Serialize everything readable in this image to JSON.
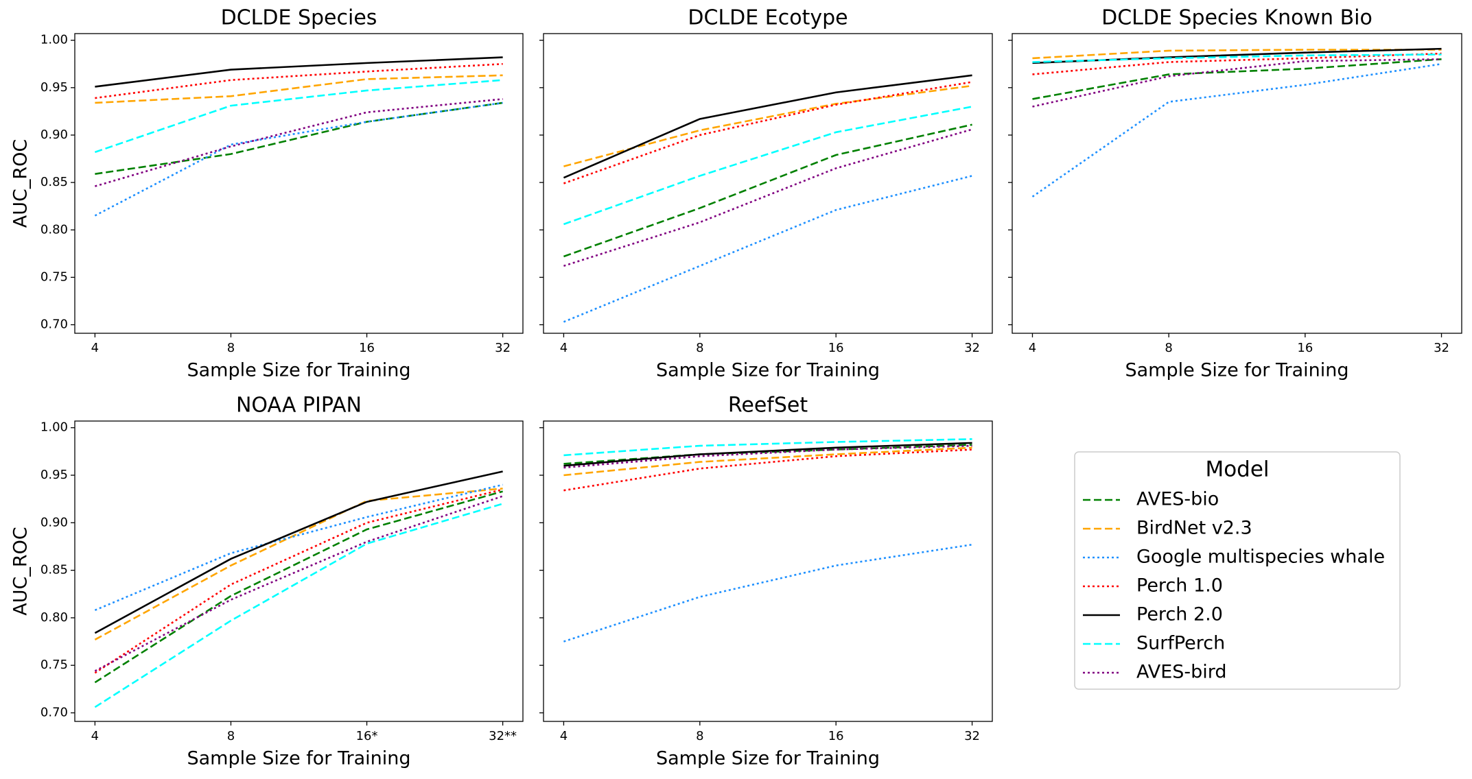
{
  "legend": {
    "title": "Model"
  },
  "chart_data": [
    {
      "type": "line",
      "title": "DCLDE Species",
      "xlabel": "Sample Size for Training",
      "ylabel": "AUC_ROC",
      "categories": [
        "4",
        "8",
        "16",
        "32"
      ],
      "ylim": [
        0.691,
        1.007
      ],
      "yticks": [
        {
          "value": 0.7,
          "label": "0.70"
        },
        {
          "value": 0.75,
          "label": "0.75"
        },
        {
          "value": 0.8,
          "label": "0.80"
        },
        {
          "value": 0.85,
          "label": "0.85"
        },
        {
          "value": 0.9,
          "label": "0.90"
        },
        {
          "value": 0.95,
          "label": "0.95"
        },
        {
          "value": 1.0,
          "label": "1.00"
        }
      ],
      "series": [
        {
          "name": "AVES-bio",
          "color": "#008000",
          "linestyle": "dashed",
          "values": [
            0.859,
            0.88,
            0.914,
            0.934
          ]
        },
        {
          "name": "BirdNet v2.3",
          "color": "#ffa500",
          "linestyle": "dashed",
          "values": [
            0.934,
            0.941,
            0.959,
            0.963
          ]
        },
        {
          "name": "Google multispecies whale",
          "color": "#1e90ff",
          "linestyle": "dotted",
          "values": [
            0.815,
            0.89,
            0.914,
            0.934
          ]
        },
        {
          "name": "Perch 1.0",
          "color": "#ff0000",
          "linestyle": "dotted",
          "values": [
            0.939,
            0.958,
            0.967,
            0.975
          ]
        },
        {
          "name": "Perch 2.0",
          "color": "#000000",
          "linestyle": "solid",
          "values": [
            0.951,
            0.969,
            0.976,
            0.982
          ]
        },
        {
          "name": "SurfPerch",
          "color": "#00ffff",
          "linestyle": "dashed",
          "values": [
            0.882,
            0.931,
            0.947,
            0.958
          ]
        },
        {
          "name": "AVES-bird",
          "color": "#800080",
          "linestyle": "dotted",
          "values": [
            0.846,
            0.888,
            0.924,
            0.938
          ]
        }
      ]
    },
    {
      "type": "line",
      "title": "DCLDE Ecotype",
      "xlabel": "Sample Size for Training",
      "categories": [
        "4",
        "8",
        "16",
        "32"
      ],
      "ylim": [
        0.691,
        1.007
      ],
      "yticklabels": false,
      "yticks": [
        0.7,
        0.75,
        0.8,
        0.85,
        0.9,
        0.95,
        1
      ],
      "series": [
        {
          "name": "AVES-bio",
          "color": "#008000",
          "linestyle": "dashed",
          "values": [
            0.772,
            0.823,
            0.879,
            0.911
          ]
        },
        {
          "name": "BirdNet v2.3",
          "color": "#ffa500",
          "linestyle": "dashed",
          "values": [
            0.867,
            0.905,
            0.933,
            0.952
          ]
        },
        {
          "name": "Google multispecies whale",
          "color": "#1e90ff",
          "linestyle": "dotted",
          "values": [
            0.703,
            0.762,
            0.821,
            0.857
          ]
        },
        {
          "name": "Perch 1.0",
          "color": "#ff0000",
          "linestyle": "dotted",
          "values": [
            0.849,
            0.9,
            0.932,
            0.956
          ]
        },
        {
          "name": "Perch 2.0",
          "color": "#000000",
          "linestyle": "solid",
          "values": [
            0.855,
            0.917,
            0.945,
            0.963
          ]
        },
        {
          "name": "SurfPerch",
          "color": "#00ffff",
          "linestyle": "dashed",
          "values": [
            0.806,
            0.857,
            0.903,
            0.93
          ]
        },
        {
          "name": "AVES-bird",
          "color": "#800080",
          "linestyle": "dotted",
          "values": [
            0.762,
            0.808,
            0.865,
            0.906
          ]
        }
      ]
    },
    {
      "type": "line",
      "title": "DCLDE Species Known Bio",
      "xlabel": "Sample Size for Training",
      "categories": [
        "4",
        "8",
        "16",
        "32"
      ],
      "ylim": [
        0.691,
        1.007
      ],
      "yticklabels": false,
      "yticks": [
        0.7,
        0.75,
        0.8,
        0.85,
        0.9,
        0.95,
        1
      ],
      "series": [
        {
          "name": "AVES-bio",
          "color": "#008000",
          "linestyle": "dashed",
          "values": [
            0.938,
            0.964,
            0.97,
            0.98
          ]
        },
        {
          "name": "BirdNet v2.3",
          "color": "#ffa500",
          "linestyle": "dashed",
          "values": [
            0.981,
            0.989,
            0.99,
            0.99
          ]
        },
        {
          "name": "Google multispecies whale",
          "color": "#1e90ff",
          "linestyle": "dotted",
          "values": [
            0.835,
            0.935,
            0.953,
            0.975
          ]
        },
        {
          "name": "Perch 1.0",
          "color": "#ff0000",
          "linestyle": "dotted",
          "values": [
            0.964,
            0.977,
            0.981,
            0.986
          ]
        },
        {
          "name": "Perch 2.0",
          "color": "#000000",
          "linestyle": "solid",
          "values": [
            0.976,
            0.982,
            0.987,
            0.991
          ]
        },
        {
          "name": "SurfPerch",
          "color": "#00ffff",
          "linestyle": "dashed",
          "values": [
            0.977,
            0.981,
            0.984,
            0.985
          ]
        },
        {
          "name": "AVES-bird",
          "color": "#800080",
          "linestyle": "dotted",
          "values": [
            0.93,
            0.962,
            0.978,
            0.98
          ]
        }
      ]
    },
    {
      "type": "line",
      "title": "NOAA PIPAN",
      "xlabel": "Sample Size for Training",
      "ylabel": "AUC_ROC",
      "categories": [
        "4",
        "8",
        "16*",
        "32**"
      ],
      "ylim": [
        0.691,
        1.007
      ],
      "yticks": [
        {
          "value": 0.7,
          "label": "0.70"
        },
        {
          "value": 0.75,
          "label": "0.75"
        },
        {
          "value": 0.8,
          "label": "0.80"
        },
        {
          "value": 0.85,
          "label": "0.85"
        },
        {
          "value": 0.9,
          "label": "0.90"
        },
        {
          "value": 0.95,
          "label": "0.95"
        },
        {
          "value": 1.0,
          "label": "1.00"
        }
      ],
      "series": [
        {
          "name": "AVES-bio",
          "color": "#008000",
          "linestyle": "dashed",
          "values": [
            0.732,
            0.823,
            0.893,
            0.933
          ]
        },
        {
          "name": "BirdNet v2.3",
          "color": "#ffa500",
          "linestyle": "dashed",
          "values": [
            0.777,
            0.855,
            0.923,
            0.936
          ]
        },
        {
          "name": "Google multispecies whale",
          "color": "#1e90ff",
          "linestyle": "dotted",
          "values": [
            0.808,
            0.868,
            0.906,
            0.94
          ]
        },
        {
          "name": "Perch 1.0",
          "color": "#ff0000",
          "linestyle": "dotted",
          "values": [
            0.742,
            0.835,
            0.9,
            0.935
          ]
        },
        {
          "name": "Perch 2.0",
          "color": "#000000",
          "linestyle": "solid",
          "values": [
            0.784,
            0.862,
            0.922,
            0.954
          ]
        },
        {
          "name": "SurfPerch",
          "color": "#00ffff",
          "linestyle": "dashed",
          "values": [
            0.706,
            0.797,
            0.878,
            0.92
          ]
        },
        {
          "name": "AVES-bird",
          "color": "#800080",
          "linestyle": "dotted",
          "values": [
            0.744,
            0.819,
            0.88,
            0.928
          ]
        }
      ]
    },
    {
      "type": "line",
      "title": "ReefSet",
      "xlabel": "Sample Size for Training",
      "categories": [
        "4",
        "8",
        "16",
        "32"
      ],
      "ylim": [
        0.691,
        1.007
      ],
      "yticklabels": false,
      "yticks": [
        0.7,
        0.75,
        0.8,
        0.85,
        0.9,
        0.95,
        1
      ],
      "series": [
        {
          "name": "AVES-bio",
          "color": "#008000",
          "linestyle": "dashed",
          "values": [
            0.962,
            0.972,
            0.977,
            0.982
          ]
        },
        {
          "name": "BirdNet v2.3",
          "color": "#ffa500",
          "linestyle": "dashed",
          "values": [
            0.95,
            0.964,
            0.972,
            0.979
          ]
        },
        {
          "name": "Google multispecies whale",
          "color": "#1e90ff",
          "linestyle": "dotted",
          "values": [
            0.775,
            0.822,
            0.855,
            0.877
          ]
        },
        {
          "name": "Perch 1.0",
          "color": "#ff0000",
          "linestyle": "dotted",
          "values": [
            0.934,
            0.957,
            0.97,
            0.977
          ]
        },
        {
          "name": "Perch 2.0",
          "color": "#000000",
          "linestyle": "solid",
          "values": [
            0.96,
            0.972,
            0.979,
            0.984
          ]
        },
        {
          "name": "SurfPerch",
          "color": "#00ffff",
          "linestyle": "dashed",
          "values": [
            0.971,
            0.981,
            0.985,
            0.988
          ]
        },
        {
          "name": "AVES-bird",
          "color": "#800080",
          "linestyle": "dotted",
          "values": [
            0.958,
            0.97,
            0.977,
            0.981
          ]
        }
      ]
    }
  ]
}
